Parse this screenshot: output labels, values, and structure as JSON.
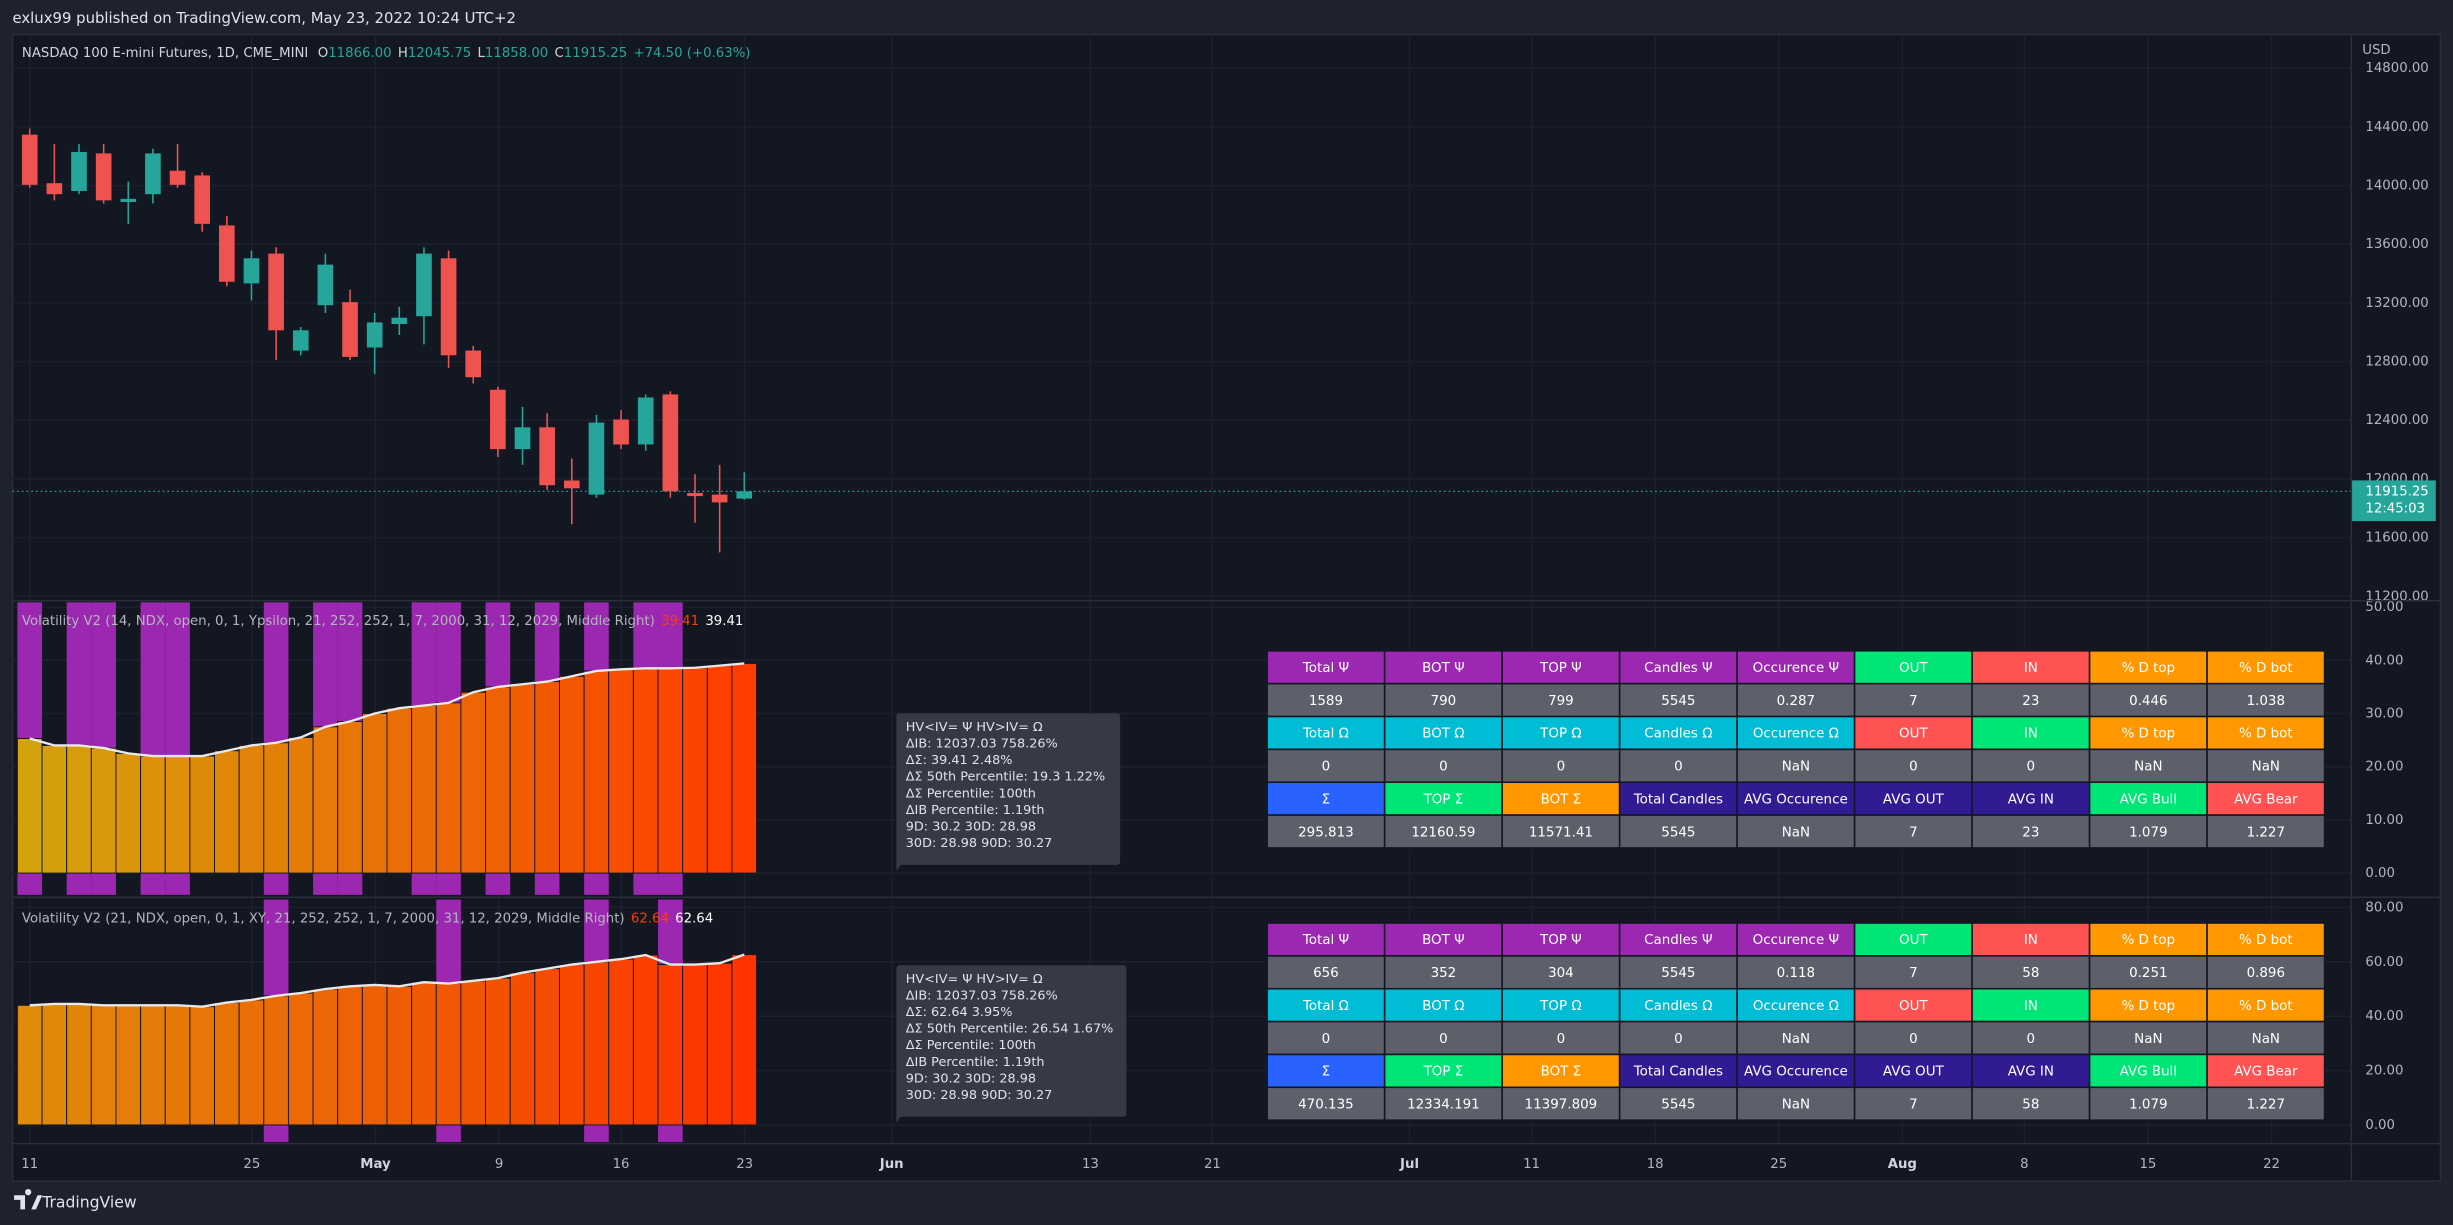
{
  "header": {
    "published": "exlux99 published on TradingView.com, May 23, 2022 10:24 UTC+2",
    "logo": "TradingView"
  },
  "price_pane": {
    "type": "candlestick",
    "symbol": "NASDAQ 100 E-mini Futures, 1D, CME_MINI",
    "ohlc_legend": [
      [
        "O",
        "11866.00"
      ],
      [
        "H",
        "12045.75"
      ],
      [
        "L",
        "11858.00"
      ],
      [
        "C",
        "11915.25"
      ]
    ],
    "change": "+74.50 (+0.63%)",
    "currency": "USD",
    "up_color": "#26a69a",
    "down_color": "#ef5350",
    "open": [
      14347,
      14016,
      13963,
      14219,
      13888,
      13941,
      14101,
      14069,
      13728,
      13333,
      13536,
      12875,
      13184,
      13205,
      12896,
      13056,
      13109,
      13504,
      12875,
      12608,
      12203,
      12352,
      11989,
      11893,
      12405,
      12235,
      12576,
      11904,
      11893,
      11866
    ],
    "high": [
      14389,
      14283,
      14283,
      14283,
      14027,
      14251,
      14283,
      14091,
      13792,
      13557,
      13579,
      13035,
      13536,
      13291,
      13131,
      13173,
      13579,
      13557,
      12907,
      12629,
      12491,
      12448,
      12139,
      12437,
      12469,
      12576,
      12597,
      12032,
      12096,
      12045.75
    ],
    "low": [
      13984,
      13899,
      13941,
      13877,
      13739,
      13877,
      13984,
      13685,
      13312,
      13216,
      12811,
      12843,
      13131,
      12811,
      12715,
      12981,
      12917,
      12757,
      12651,
      12149,
      12096,
      11925,
      11691,
      11872,
      12203,
      12192,
      11872,
      11701,
      11499,
      11858
    ],
    "close": [
      14005,
      13941,
      14229,
      13899,
      13909,
      14219,
      14005,
      13739,
      13344,
      13504,
      13013,
      13013,
      13461,
      12832,
      13067,
      13099,
      13536,
      12843,
      12693,
      12203,
      12352,
      11957,
      11936,
      12384,
      12235,
      12555,
      11915,
      11883,
      11840,
      11915.25
    ],
    "ylim": [
      11180,
      15030
    ],
    "yticks": [
      {
        "value": 14800,
        "label": "14800.00"
      },
      {
        "value": 14400,
        "label": "14400.00"
      },
      {
        "value": 14000,
        "label": "14000.00"
      },
      {
        "value": 13600,
        "label": "13600.00"
      },
      {
        "value": 13200,
        "label": "13200.00"
      },
      {
        "value": 12800,
        "label": "12800.00"
      },
      {
        "value": 12400,
        "label": "12400.00"
      },
      {
        "value": 12000,
        "label": "12000.00"
      },
      {
        "value": 11600,
        "label": "11600.00"
      },
      {
        "value": 11200,
        "label": "11200.00"
      }
    ],
    "last_price": {
      "value": 11915.25,
      "label": "11915.25"
    },
    "countdown": "12:45:03"
  },
  "panes": [
    {
      "type": "bar",
      "title": "Volatility V2 (14, NDX, open, 0, 1, Ypsilon, 21, 252, 252, 1, 7, 2000, 31, 12, 2029, Middle Right)",
      "indicator_values": [
        "39.41",
        "39.41"
      ],
      "values": [
        25.3,
        24,
        24,
        23.5,
        22.5,
        22,
        22,
        22,
        23,
        24,
        24.5,
        25.5,
        27.5,
        28.5,
        30,
        31,
        31.5,
        32,
        34,
        35,
        35.5,
        36,
        37,
        38,
        38.3,
        38.5,
        38.5,
        38.6,
        39,
        39.41
      ],
      "highlights": [
        0,
        2,
        3,
        5,
        6,
        10,
        12,
        13,
        16,
        17,
        19,
        21,
        23,
        25,
        26
      ],
      "highlight_color": "#9c27b0",
      "bar_color_start": "#d4a30c",
      "bar_color_end": "#ff3d00",
      "line_color": "#e8e8e8",
      "ylim": [
        -4.1,
        50.9
      ],
      "yticks": [
        {
          "value": 50,
          "label": "50.00"
        },
        {
          "value": 40,
          "label": "40.00"
        },
        {
          "value": 30,
          "label": "30.00"
        },
        {
          "value": 20,
          "label": "20.00"
        },
        {
          "value": 10,
          "label": "10.00"
        },
        {
          "value": 0,
          "label": "0.00"
        }
      ],
      "tooltip": [
        "HV<IV= Ψ  HV>IV= Ω",
        "ΔIB: 12037.03  758.26%",
        "ΔΣ: 39.41  2.48%",
        "ΔΣ 50th Percentile: 19.3  1.22%",
        "ΔΣ Percentile: 100th",
        "ΔIB Percentile: 1.19th",
        "9D: 30.2  30D: 28.98",
        "30D: 28.98  90D: 30.27"
      ],
      "table": [
        {
          "cells": [
            "Total Ψ",
            "BOT Ψ",
            "TOP Ψ",
            "Candles Ψ",
            "Occurence Ψ",
            "OUT",
            "IN",
            "% D top",
            "% D bot"
          ],
          "colors": [
            "#9c27b0",
            "#9c27b0",
            "#9c27b0",
            "#9c27b0",
            "#9c27b0",
            "#00e676",
            "#ff5252",
            "#ff9800",
            "#ff9800"
          ]
        },
        {
          "cells": [
            "1589",
            "790",
            "799",
            "5545",
            "0.287",
            "7",
            "23",
            "0.446",
            "1.038"
          ],
          "colors": [
            "#5d606b",
            "#5d606b",
            "#5d606b",
            "#5d606b",
            "#5d606b",
            "#5d606b",
            "#5d606b",
            "#5d606b",
            "#5d606b"
          ]
        },
        {
          "cells": [
            "Total Ω",
            "BOT Ω",
            "TOP Ω",
            "Candles Ω",
            "Occurence Ω",
            "OUT",
            "IN",
            "% D top",
            "% D bot"
          ],
          "colors": [
            "#00bcd4",
            "#00bcd4",
            "#00bcd4",
            "#00bcd4",
            "#00bcd4",
            "#ff5252",
            "#00e676",
            "#ff9800",
            "#ff9800"
          ]
        },
        {
          "cells": [
            "0",
            "0",
            "0",
            "0",
            "NaN",
            "0",
            "0",
            "NaN",
            "NaN"
          ],
          "colors": [
            "#5d606b",
            "#5d606b",
            "#5d606b",
            "#5d606b",
            "#5d606b",
            "#5d606b",
            "#5d606b",
            "#5d606b",
            "#5d606b"
          ]
        },
        {
          "cells": [
            "Σ",
            "TOP Σ",
            "BOT Σ",
            "Total Candles",
            "AVG Occurence",
            "AVG OUT",
            "AVG IN",
            "AVG Bull",
            "AVG Bear"
          ],
          "colors": [
            "#2962ff",
            "#00e676",
            "#ff9800",
            "#311b92",
            "#311b92",
            "#311b92",
            "#311b92",
            "#00e676",
            "#ff5252"
          ]
        },
        {
          "cells": [
            "295.813",
            "12160.59",
            "11571.41",
            "5545",
            "NaN",
            "7",
            "23",
            "1.079",
            "1.227"
          ],
          "colors": [
            "#5d606b",
            "#5d606b",
            "#5d606b",
            "#5d606b",
            "#5d606b",
            "#5d606b",
            "#5d606b",
            "#5d606b",
            "#5d606b"
          ]
        }
      ]
    },
    {
      "type": "bar",
      "title": "Volatility V2 (21, NDX, open, 0, 1, XY, 21, 252, 252, 1, 7, 2000, 31, 12, 2029, Middle Right)",
      "indicator_values": [
        "62.64",
        "62.64"
      ],
      "values": [
        44,
        44.5,
        44.5,
        44,
        44,
        44,
        44,
        43.5,
        45,
        46,
        47.5,
        48.5,
        50,
        51,
        51.5,
        51,
        52.5,
        52,
        53,
        54,
        56,
        57.5,
        59,
        60,
        61,
        62.5,
        59,
        59,
        59.5,
        62.64
      ],
      "highlights": [
        10,
        17,
        23,
        26
      ],
      "highlight_color": "#9c27b0",
      "bar_color_start": "#e08a0a",
      "bar_color_end": "#ff3300",
      "line_color": "#e8e8e8",
      "ylim": [
        -6.3,
        82.9
      ],
      "yticks": [
        {
          "value": 80,
          "label": "80.00"
        },
        {
          "value": 60,
          "label": "60.00"
        },
        {
          "value": 40,
          "label": "40.00"
        },
        {
          "value": 20,
          "label": "20.00"
        },
        {
          "value": 0,
          "label": "0.00"
        }
      ],
      "tooltip": [
        "HV<IV= Ψ  HV>IV= Ω",
        "ΔIB: 12037.03  758.26%",
        "ΔΣ: 62.64  3.95%",
        "ΔΣ 50th Percentile: 26.54  1.67%",
        "ΔΣ Percentile: 100th",
        "ΔIB Percentile: 1.19th",
        "9D: 30.2  30D: 28.98",
        "30D: 28.98  90D: 30.27"
      ],
      "table": [
        {
          "cells": [
            "Total Ψ",
            "BOT Ψ",
            "TOP Ψ",
            "Candles Ψ",
            "Occurence Ψ",
            "OUT",
            "IN",
            "% D top",
            "% D bot"
          ],
          "colors": [
            "#9c27b0",
            "#9c27b0",
            "#9c27b0",
            "#9c27b0",
            "#9c27b0",
            "#00e676",
            "#ff5252",
            "#ff9800",
            "#ff9800"
          ]
        },
        {
          "cells": [
            "656",
            "352",
            "304",
            "5545",
            "0.118",
            "7",
            "58",
            "0.251",
            "0.896"
          ],
          "colors": [
            "#5d606b",
            "#5d606b",
            "#5d606b",
            "#5d606b",
            "#5d606b",
            "#5d606b",
            "#5d606b",
            "#5d606b",
            "#5d606b"
          ]
        },
        {
          "cells": [
            "Total Ω",
            "BOT Ω",
            "TOP Ω",
            "Candles Ω",
            "Occurence Ω",
            "OUT",
            "IN",
            "% D top",
            "% D bot"
          ],
          "colors": [
            "#00bcd4",
            "#00bcd4",
            "#00bcd4",
            "#00bcd4",
            "#00bcd4",
            "#ff5252",
            "#00e676",
            "#ff9800",
            "#ff9800"
          ]
        },
        {
          "cells": [
            "0",
            "0",
            "0",
            "0",
            "NaN",
            "0",
            "0",
            "NaN",
            "NaN"
          ],
          "colors": [
            "#5d606b",
            "#5d606b",
            "#5d606b",
            "#5d606b",
            "#5d606b",
            "#5d606b",
            "#5d606b",
            "#5d606b",
            "#5d606b"
          ]
        },
        {
          "cells": [
            "Σ",
            "TOP Σ",
            "BOT Σ",
            "Total Candles",
            "AVG Occurence",
            "AVG OUT",
            "AVG IN",
            "AVG Bull",
            "AVG Bear"
          ],
          "colors": [
            "#2962ff",
            "#00e676",
            "#ff9800",
            "#311b92",
            "#311b92",
            "#311b92",
            "#311b92",
            "#00e676",
            "#ff5252"
          ]
        },
        {
          "cells": [
            "470.135",
            "12334.191",
            "11397.809",
            "5545",
            "NaN",
            "7",
            "58",
            "1.079",
            "1.227"
          ],
          "colors": [
            "#5d606b",
            "#5d606b",
            "#5d606b",
            "#5d606b",
            "#5d606b",
            "#5d606b",
            "#5d606b",
            "#5d606b",
            "#5d606b"
          ]
        }
      ]
    }
  ],
  "time_axis": [
    "11",
    "25",
    "May",
    "9",
    "16",
    "23",
    "Jun",
    "13",
    "21",
    "Jul",
    "11",
    "18",
    "25",
    "Aug",
    "8",
    "15",
    "22"
  ]
}
